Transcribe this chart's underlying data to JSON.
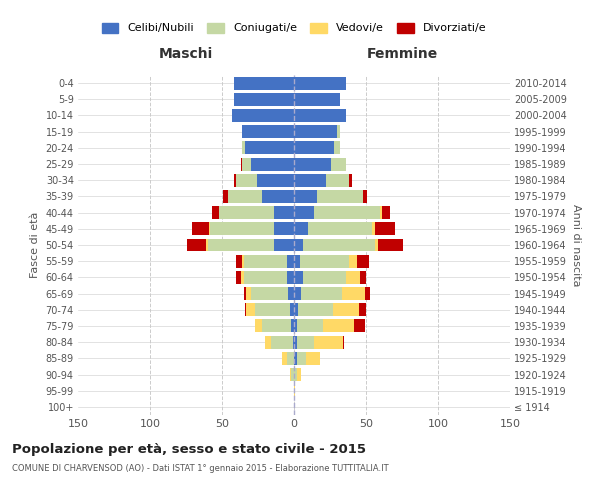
{
  "age_groups": [
    "100+",
    "95-99",
    "90-94",
    "85-89",
    "80-84",
    "75-79",
    "70-74",
    "65-69",
    "60-64",
    "55-59",
    "50-54",
    "45-49",
    "40-44",
    "35-39",
    "30-34",
    "25-29",
    "20-24",
    "15-19",
    "10-14",
    "5-9",
    "0-4"
  ],
  "birth_years": [
    "≤ 1914",
    "1915-1919",
    "1920-1924",
    "1925-1929",
    "1930-1934",
    "1935-1939",
    "1940-1944",
    "1945-1949",
    "1950-1954",
    "1955-1959",
    "1960-1964",
    "1965-1969",
    "1970-1974",
    "1975-1979",
    "1980-1984",
    "1985-1989",
    "1990-1994",
    "1995-1999",
    "2000-2004",
    "2005-2009",
    "2010-2014"
  ],
  "males": {
    "celibi": [
      0,
      0,
      0,
      0,
      1,
      2,
      3,
      4,
      5,
      5,
      14,
      14,
      14,
      22,
      26,
      30,
      34,
      36,
      43,
      42,
      42
    ],
    "coniugati": [
      0,
      0,
      2,
      5,
      15,
      20,
      24,
      26,
      30,
      30,
      46,
      44,
      38,
      24,
      14,
      6,
      2,
      0,
      0,
      0,
      0
    ],
    "vedovi": [
      0,
      0,
      1,
      3,
      4,
      5,
      6,
      3,
      2,
      1,
      1,
      1,
      0,
      0,
      0,
      0,
      0,
      0,
      0,
      0,
      0
    ],
    "divorziati": [
      0,
      0,
      0,
      0,
      0,
      0,
      1,
      2,
      3,
      4,
      13,
      12,
      5,
      3,
      2,
      1,
      0,
      0,
      0,
      0,
      0
    ]
  },
  "females": {
    "nubili": [
      0,
      0,
      0,
      2,
      2,
      2,
      3,
      5,
      6,
      4,
      6,
      10,
      14,
      16,
      22,
      26,
      28,
      30,
      36,
      32,
      36
    ],
    "coniugate": [
      0,
      0,
      2,
      6,
      12,
      18,
      24,
      28,
      30,
      34,
      50,
      44,
      46,
      32,
      16,
      10,
      4,
      2,
      0,
      0,
      0
    ],
    "vedove": [
      0,
      1,
      3,
      10,
      20,
      22,
      18,
      16,
      10,
      6,
      2,
      2,
      1,
      0,
      0,
      0,
      0,
      0,
      0,
      0,
      0
    ],
    "divorziate": [
      0,
      0,
      0,
      0,
      1,
      7,
      5,
      4,
      4,
      8,
      18,
      14,
      6,
      3,
      2,
      0,
      0,
      0,
      0,
      0,
      0
    ]
  },
  "color_celibi": "#4472c4",
  "color_coniugati": "#c5d8a4",
  "color_vedovi": "#ffd966",
  "color_divorziati": "#c00000",
  "title": "Popolazione per età, sesso e stato civile - 2015",
  "subtitle": "COMUNE DI CHARVENSOD (AO) - Dati ISTAT 1° gennaio 2015 - Elaborazione TUTTITALIA.IT",
  "header_left": "Maschi",
  "header_right": "Femmine",
  "ylabel_left": "Fasce di età",
  "ylabel_right": "Anni di nascita",
  "xlim": 150,
  "background_color": "#ffffff",
  "grid_color": "#cccccc",
  "legend_labels": [
    "Celibi/Nubili",
    "Coniugati/e",
    "Vedovi/e",
    "Divorziati/e"
  ]
}
